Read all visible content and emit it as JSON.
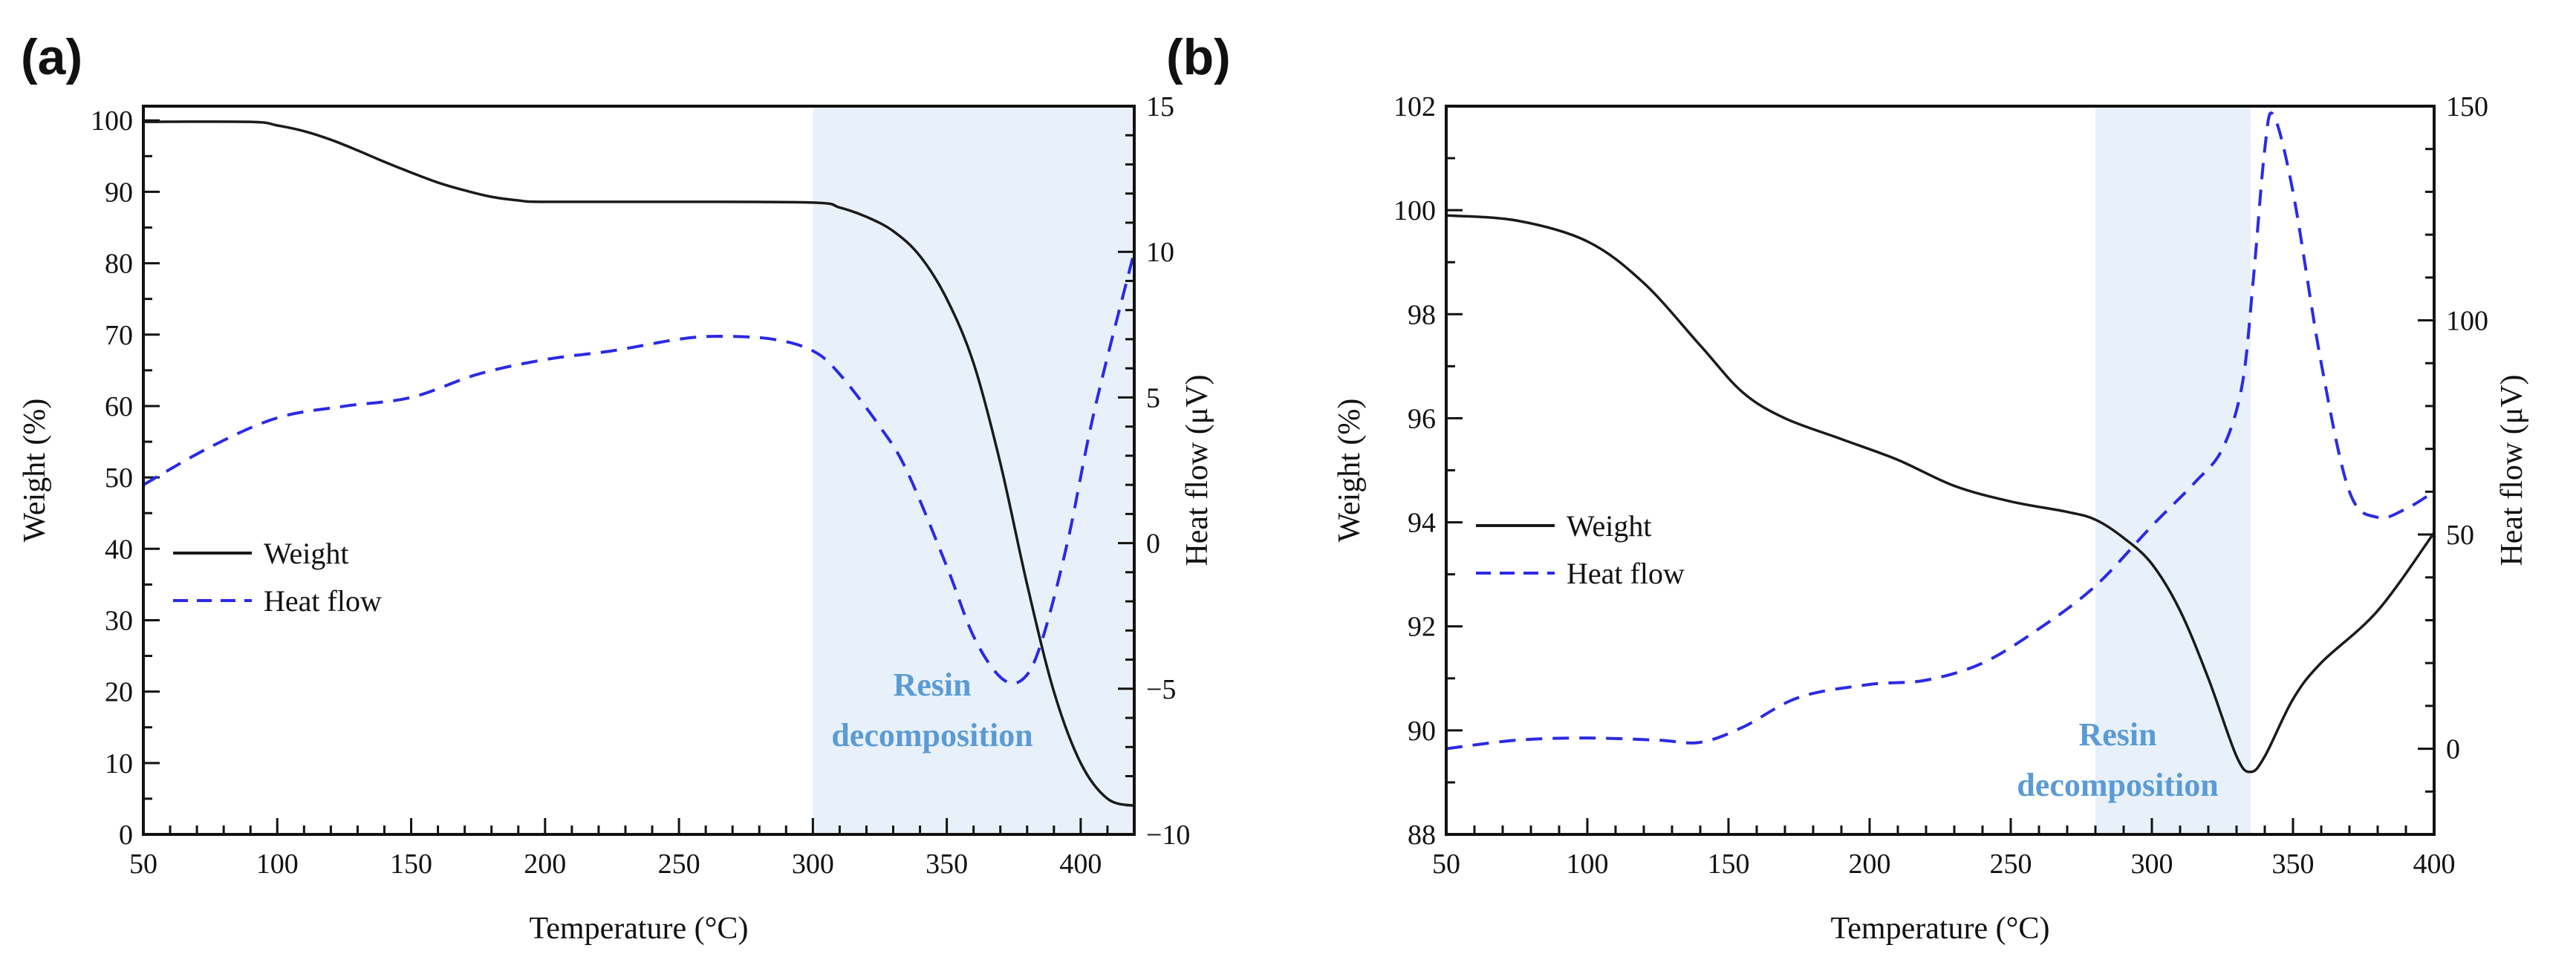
{
  "colors": {
    "weight": "#1a1a1a",
    "heat_flow": "#2a2ae6",
    "shade": "#e8f1fa",
    "annotation": "#5b9bd5"
  },
  "chart_data": [
    {
      "panel_label": "(a)",
      "type": "line",
      "xlabel": "Temperature (°C)",
      "ylabel": "Weight (%)",
      "y2label": "Heat flow (μV)",
      "xlim": [
        50,
        420
      ],
      "ylim": [
        0,
        102
      ],
      "y2lim": [
        -10,
        15
      ],
      "xticks": [
        50,
        100,
        150,
        200,
        250,
        300,
        350,
        400
      ],
      "yticks": [
        0,
        10,
        20,
        30,
        40,
        50,
        60,
        70,
        80,
        90,
        100
      ],
      "y2ticks": [
        -10,
        -5,
        0,
        5,
        10,
        15
      ],
      "shaded_region": {
        "x": [
          300,
          420
        ],
        "label_lines": [
          "Resin",
          "decomposition"
        ]
      },
      "legend": {
        "placement": "center-left",
        "entries": [
          "Weight",
          "Heat flow"
        ]
      },
      "series": [
        {
          "name": "Weight",
          "axis": "left",
          "style": "solid",
          "x": [
            50,
            90,
            100,
            110,
            120,
            130,
            140,
            150,
            160,
            170,
            180,
            190,
            200,
            250,
            300,
            310,
            320,
            330,
            340,
            350,
            360,
            370,
            380,
            390,
            400,
            410,
            420
          ],
          "y": [
            99.8,
            99.8,
            99.3,
            98.5,
            97.3,
            95.8,
            94.2,
            92.7,
            91.3,
            90.2,
            89.3,
            88.8,
            88.6,
            88.6,
            88.5,
            87.8,
            86.5,
            84.5,
            81,
            75,
            66,
            52,
            35,
            20,
            10,
            5,
            4
          ]
        },
        {
          "name": "Heat flow",
          "axis": "right",
          "style": "dashed",
          "x": [
            50,
            75,
            100,
            125,
            150,
            175,
            200,
            225,
            250,
            265,
            285,
            300,
            310,
            325,
            335,
            350,
            360,
            370,
            378,
            385,
            395,
            405,
            420
          ],
          "y": [
            2,
            3.3,
            4.3,
            4.7,
            5,
            5.8,
            6.3,
            6.6,
            7,
            7.1,
            7,
            6.6,
            5.8,
            4,
            2.5,
            -0.8,
            -3.2,
            -4.6,
            -4.7,
            -3.5,
            0,
            4.5,
            10
          ]
        }
      ]
    },
    {
      "panel_label": "(b)",
      "type": "line",
      "xlabel": "Temperature (°C)",
      "ylabel": "Weight (%)",
      "y2label": "Heat flow (μV)",
      "xlim": [
        50,
        400
      ],
      "ylim": [
        88,
        102
      ],
      "y2lim": [
        -20,
        150
      ],
      "xticks": [
        50,
        100,
        150,
        200,
        250,
        300,
        350,
        400
      ],
      "yticks": [
        88,
        90,
        92,
        94,
        96,
        98,
        100,
        102
      ],
      "y2ticks": [
        0,
        50,
        100,
        150
      ],
      "shaded_region": {
        "x": [
          280,
          335
        ],
        "label_lines": [
          "Resin",
          "decomposition"
        ]
      },
      "legend": {
        "placement": "center-left",
        "entries": [
          "Weight",
          "Heat flow"
        ]
      },
      "series": [
        {
          "name": "Weight",
          "axis": "left",
          "style": "solid",
          "x": [
            50,
            75,
            100,
            120,
            140,
            155,
            170,
            190,
            210,
            230,
            250,
            270,
            280,
            290,
            300,
            310,
            320,
            330,
            335,
            340,
            350,
            360,
            380,
            400
          ],
          "y": [
            99.9,
            99.8,
            99.4,
            98.6,
            97.4,
            96.5,
            96,
            95.6,
            95.2,
            94.7,
            94.4,
            94.2,
            94.05,
            93.7,
            93.2,
            92.3,
            91,
            89.5,
            89.2,
            89.5,
            90.6,
            91.3,
            92.3,
            93.8
          ]
        },
        {
          "name": "Heat flow",
          "axis": "right",
          "style": "dashed",
          "x": [
            50,
            75,
            100,
            125,
            140,
            155,
            175,
            200,
            220,
            240,
            260,
            280,
            300,
            315,
            325,
            332,
            336,
            340,
            343,
            350,
            360,
            370,
            380,
            390,
            400
          ],
          "y": [
            0,
            2,
            2.5,
            2,
            1.5,
            5,
            12,
            15,
            16,
            20,
            28,
            38,
            52,
            62,
            70,
            85,
            110,
            140,
            148,
            130,
            90,
            60,
            54,
            56,
            60
          ]
        }
      ]
    }
  ]
}
